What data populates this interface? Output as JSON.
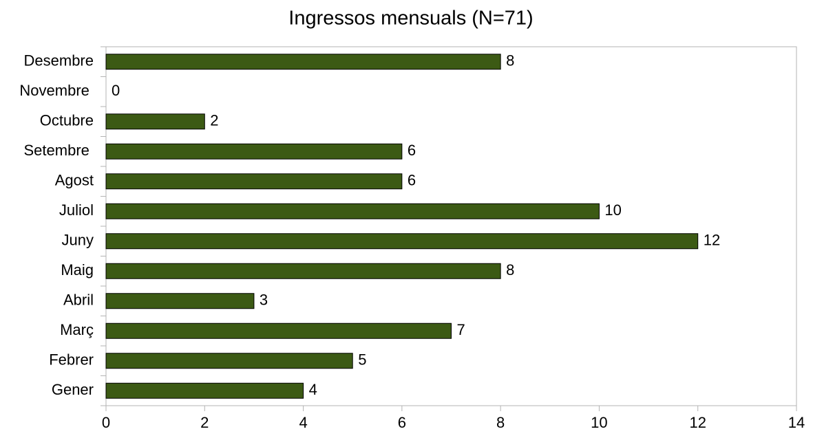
{
  "chart_data": {
    "type": "hbar",
    "title": "Ingressos mensuals (N=71)",
    "categories": [
      "Gener",
      "Febrer",
      "Març",
      "Abril",
      "Maig",
      "Juny",
      "Juliol",
      "Agost",
      "Setembre ",
      "Octubre",
      "Novembre ",
      "Desembre"
    ],
    "values": [
      4,
      5,
      7,
      3,
      8,
      12,
      10,
      6,
      6,
      2,
      0,
      8
    ],
    "color": "#3c5a14",
    "xlim": [
      0,
      14
    ],
    "xticks": [
      0,
      2,
      4,
      6,
      8,
      10,
      12,
      14
    ],
    "grid": false
  }
}
